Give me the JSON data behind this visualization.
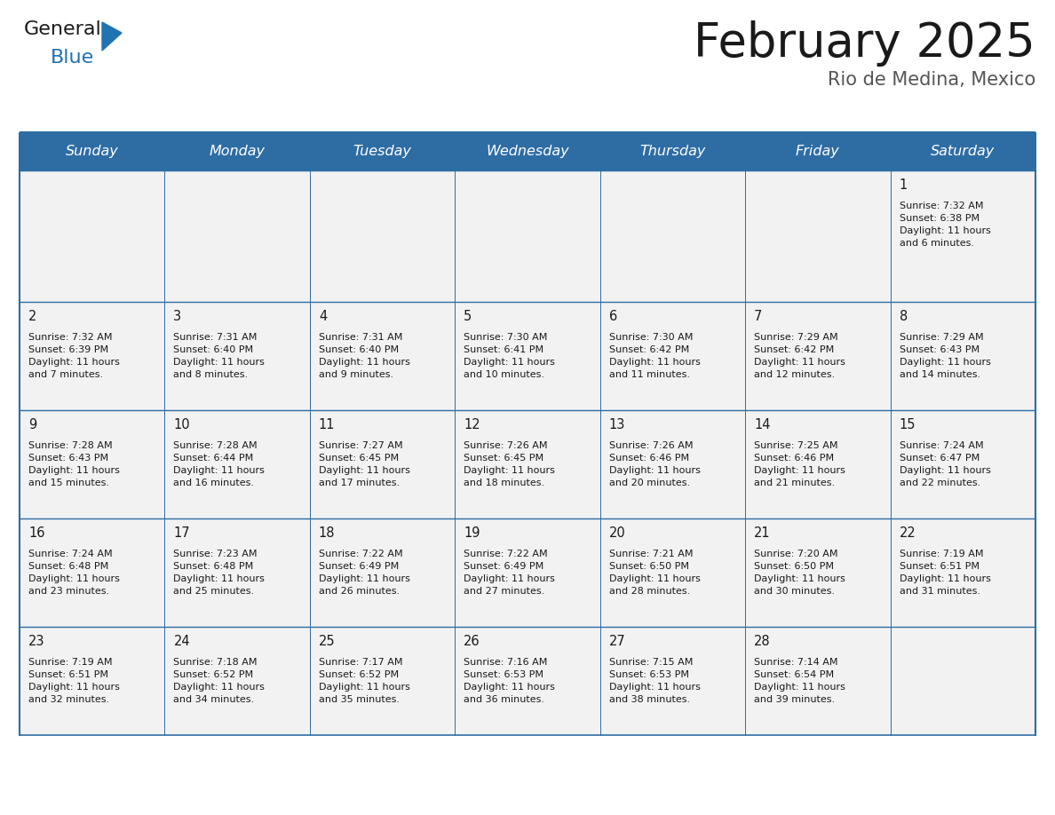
{
  "title": "February 2025",
  "subtitle": "Rio de Medina, Mexico",
  "header_color": "#2E6DA4",
  "header_text_color": "#FFFFFF",
  "cell_bg_color": "#F2F2F2",
  "border_color": "#2E6DA4",
  "text_color": "#1a1a1a",
  "days_of_week": [
    "Sunday",
    "Monday",
    "Tuesday",
    "Wednesday",
    "Thursday",
    "Friday",
    "Saturday"
  ],
  "calendar_data": [
    [
      null,
      null,
      null,
      null,
      null,
      null,
      {
        "day": 1,
        "sunrise": "7:32 AM",
        "sunset": "6:38 PM",
        "daylight": "11 hours",
        "daylight2": "and 6 minutes."
      }
    ],
    [
      {
        "day": 2,
        "sunrise": "7:32 AM",
        "sunset": "6:39 PM",
        "daylight": "11 hours",
        "daylight2": "and 7 minutes."
      },
      {
        "day": 3,
        "sunrise": "7:31 AM",
        "sunset": "6:40 PM",
        "daylight": "11 hours",
        "daylight2": "and 8 minutes."
      },
      {
        "day": 4,
        "sunrise": "7:31 AM",
        "sunset": "6:40 PM",
        "daylight": "11 hours",
        "daylight2": "and 9 minutes."
      },
      {
        "day": 5,
        "sunrise": "7:30 AM",
        "sunset": "6:41 PM",
        "daylight": "11 hours",
        "daylight2": "and 10 minutes."
      },
      {
        "day": 6,
        "sunrise": "7:30 AM",
        "sunset": "6:42 PM",
        "daylight": "11 hours",
        "daylight2": "and 11 minutes."
      },
      {
        "day": 7,
        "sunrise": "7:29 AM",
        "sunset": "6:42 PM",
        "daylight": "11 hours",
        "daylight2": "and 12 minutes."
      },
      {
        "day": 8,
        "sunrise": "7:29 AM",
        "sunset": "6:43 PM",
        "daylight": "11 hours",
        "daylight2": "and 14 minutes."
      }
    ],
    [
      {
        "day": 9,
        "sunrise": "7:28 AM",
        "sunset": "6:43 PM",
        "daylight": "11 hours",
        "daylight2": "and 15 minutes."
      },
      {
        "day": 10,
        "sunrise": "7:28 AM",
        "sunset": "6:44 PM",
        "daylight": "11 hours",
        "daylight2": "and 16 minutes."
      },
      {
        "day": 11,
        "sunrise": "7:27 AM",
        "sunset": "6:45 PM",
        "daylight": "11 hours",
        "daylight2": "and 17 minutes."
      },
      {
        "day": 12,
        "sunrise": "7:26 AM",
        "sunset": "6:45 PM",
        "daylight": "11 hours",
        "daylight2": "and 18 minutes."
      },
      {
        "day": 13,
        "sunrise": "7:26 AM",
        "sunset": "6:46 PM",
        "daylight": "11 hours",
        "daylight2": "and 20 minutes."
      },
      {
        "day": 14,
        "sunrise": "7:25 AM",
        "sunset": "6:46 PM",
        "daylight": "11 hours",
        "daylight2": "and 21 minutes."
      },
      {
        "day": 15,
        "sunrise": "7:24 AM",
        "sunset": "6:47 PM",
        "daylight": "11 hours",
        "daylight2": "and 22 minutes."
      }
    ],
    [
      {
        "day": 16,
        "sunrise": "7:24 AM",
        "sunset": "6:48 PM",
        "daylight": "11 hours",
        "daylight2": "and 23 minutes."
      },
      {
        "day": 17,
        "sunrise": "7:23 AM",
        "sunset": "6:48 PM",
        "daylight": "11 hours",
        "daylight2": "and 25 minutes."
      },
      {
        "day": 18,
        "sunrise": "7:22 AM",
        "sunset": "6:49 PM",
        "daylight": "11 hours",
        "daylight2": "and 26 minutes."
      },
      {
        "day": 19,
        "sunrise": "7:22 AM",
        "sunset": "6:49 PM",
        "daylight": "11 hours",
        "daylight2": "and 27 minutes."
      },
      {
        "day": 20,
        "sunrise": "7:21 AM",
        "sunset": "6:50 PM",
        "daylight": "11 hours",
        "daylight2": "and 28 minutes."
      },
      {
        "day": 21,
        "sunrise": "7:20 AM",
        "sunset": "6:50 PM",
        "daylight": "11 hours",
        "daylight2": "and 30 minutes."
      },
      {
        "day": 22,
        "sunrise": "7:19 AM",
        "sunset": "6:51 PM",
        "daylight": "11 hours",
        "daylight2": "and 31 minutes."
      }
    ],
    [
      {
        "day": 23,
        "sunrise": "7:19 AM",
        "sunset": "6:51 PM",
        "daylight": "11 hours",
        "daylight2": "and 32 minutes."
      },
      {
        "day": 24,
        "sunrise": "7:18 AM",
        "sunset": "6:52 PM",
        "daylight": "11 hours",
        "daylight2": "and 34 minutes."
      },
      {
        "day": 25,
        "sunrise": "7:17 AM",
        "sunset": "6:52 PM",
        "daylight": "11 hours",
        "daylight2": "and 35 minutes."
      },
      {
        "day": 26,
        "sunrise": "7:16 AM",
        "sunset": "6:53 PM",
        "daylight": "11 hours",
        "daylight2": "and 36 minutes."
      },
      {
        "day": 27,
        "sunrise": "7:15 AM",
        "sunset": "6:53 PM",
        "daylight": "11 hours",
        "daylight2": "and 38 minutes."
      },
      {
        "day": 28,
        "sunrise": "7:14 AM",
        "sunset": "6:54 PM",
        "daylight": "11 hours",
        "daylight2": "and 39 minutes."
      },
      null
    ]
  ],
  "logo_text_general": "General",
  "logo_text_blue": "Blue",
  "logo_color_general": "#1a1a1a",
  "logo_color_blue": "#2072B2"
}
